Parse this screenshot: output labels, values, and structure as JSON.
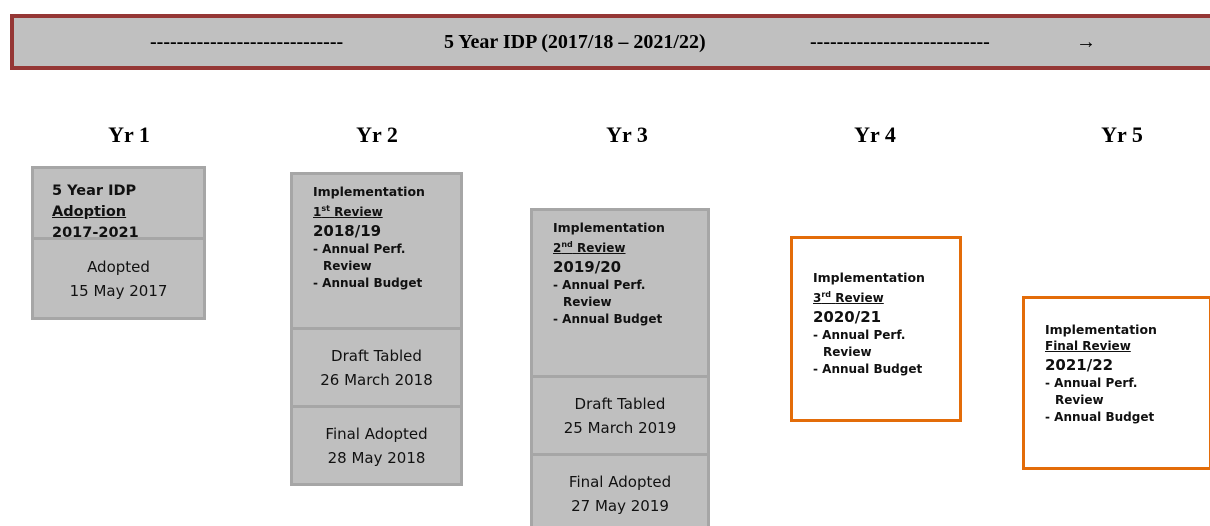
{
  "banner": {
    "left_dashes": "-----------------------------",
    "title": "5 Year IDP (2017/18 – 2021/22)",
    "right_dashes": "---------------------------",
    "arrow": "→"
  },
  "columns": [
    {
      "year": "Yr 1",
      "head": {
        "title": "5 Year IDP",
        "review": {
          "text": "Adoption"
        },
        "period": "2017-2021"
      },
      "subs": [
        [
          "Adopted",
          "15 May 2017"
        ]
      ]
    },
    {
      "year": "Yr 2",
      "head": {
        "title": "Implementation",
        "review": {
          "number": "1",
          "suffix": "st",
          "text": "Review"
        },
        "period": "2018/19",
        "items": [
          "- Annual Perf. Review",
          "- Annual Budget"
        ]
      },
      "subs": [
        [
          "Draft Tabled",
          "26 March 2018"
        ],
        [
          "Final Adopted",
          "28 May 2018"
        ]
      ]
    },
    {
      "year": "Yr 3",
      "head": {
        "title": "Implementation",
        "review": {
          "number": "2",
          "suffix": "nd",
          "text": "Review"
        },
        "period": "2019/20",
        "items": [
          "- Annual Perf. Review",
          "- Annual Budget"
        ]
      },
      "subs": [
        [
          "Draft Tabled",
          "25 March 2019"
        ],
        [
          "Final Adopted",
          "27 May 2019"
        ]
      ]
    },
    {
      "year": "Yr 4",
      "head": {
        "title": "Implementation",
        "review": {
          "number": "3",
          "suffix": "rd",
          "text": "Review"
        },
        "period": "2020/21",
        "items": [
          "- Annual Perf. Review",
          "- Annual Budget"
        ]
      },
      "subs": []
    },
    {
      "year": "Yr 5",
      "head": {
        "title": "Implementation",
        "review": {
          "text": "Final Review"
        },
        "period": "2021/22",
        "items": [
          "- Annual Perf. Review",
          "- Annual Budget"
        ]
      },
      "subs": []
    }
  ]
}
